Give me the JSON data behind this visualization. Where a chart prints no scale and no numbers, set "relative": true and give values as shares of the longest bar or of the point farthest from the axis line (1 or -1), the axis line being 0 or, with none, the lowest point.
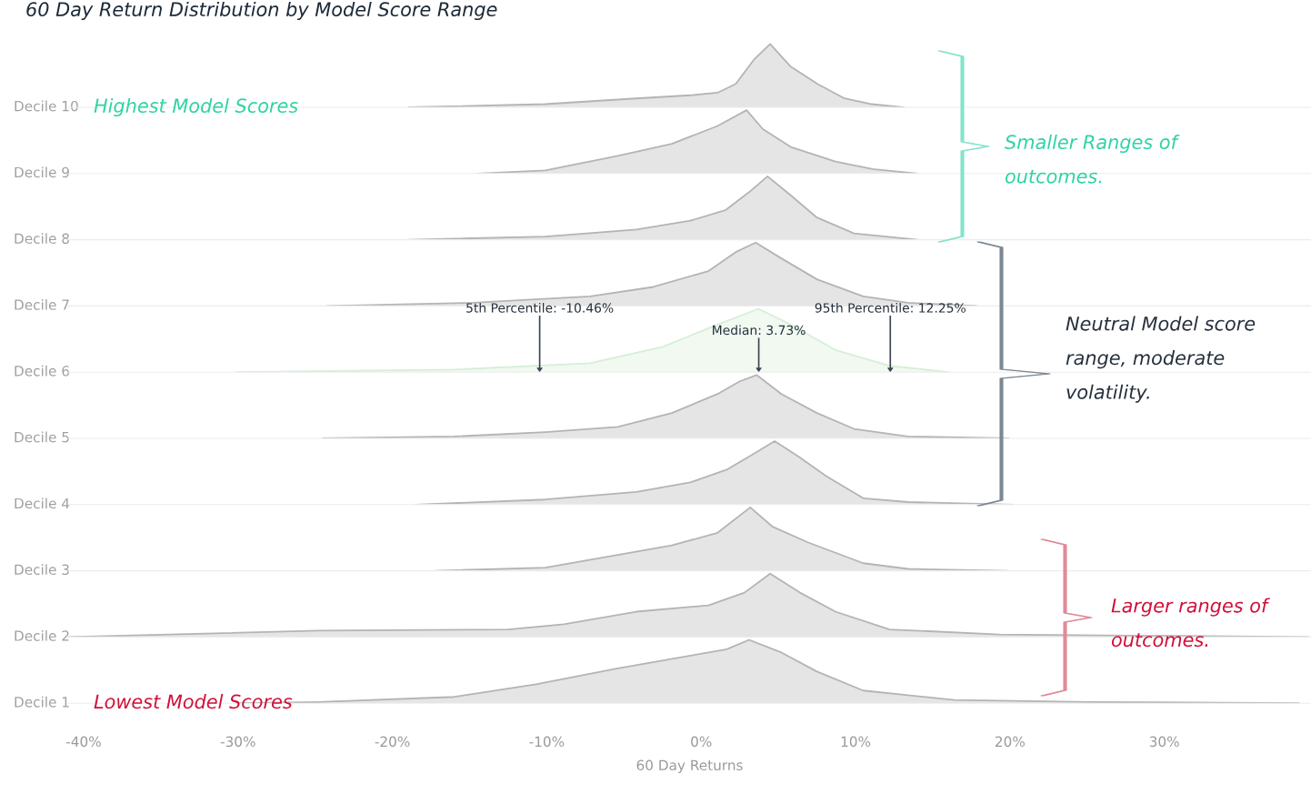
{
  "chart_data": [
    {
      "type": "area",
      "relative": true,
      "title": "60 Day Return Distribution by Model Score Range",
      "ylabel": "Decile 10",
      "annotations": [
        "Highest Model Scores"
      ],
      "xlim": [
        -41,
        39.5
      ],
      "tick_labels": false,
      "series": [
        {
          "color": "#b4b4b4",
          "x": [
            -18.94,
            -10.12,
            -4.24,
            -0.71,
            1.06,
            2.24,
            3.41,
            4.47,
            5.76,
            7.53,
            9.29,
            11.06,
            13.12
          ],
          "values": [
            0,
            0.05,
            0.14,
            0.19,
            0.23,
            0.37,
            0.75,
            1,
            0.65,
            0.37,
            0.14,
            0.05,
            0
          ]
        }
      ]
    },
    {
      "type": "area",
      "relative": true,
      "ylabel": "Decile 9",
      "annotations": [
        "Smaller Ranges of\noutcomes."
      ],
      "xlim": [
        -41,
        39.5
      ],
      "tick_labels": false,
      "series": [
        {
          "color": "#b4b4b4",
          "x": [
            -14.5,
            -10.1,
            -5.4,
            -1.9,
            1.06,
            2.94,
            4.0,
            5.8,
            8.7,
            11.1,
            14.0
          ],
          "values": [
            0,
            0.05,
            0.28,
            0.47,
            0.75,
            1,
            0.7,
            0.42,
            0.19,
            0.07,
            0
          ]
        }
      ]
    },
    {
      "type": "area",
      "relative": true,
      "ylabel": "Decile 8",
      "xlim": [
        -41,
        39.5
      ],
      "tick_labels": false,
      "series": [
        {
          "color": "#b4b4b4",
          "x": [
            -18.9,
            -10.1,
            -4.2,
            -0.7,
            1.6,
            3.1,
            4.3,
            5.8,
            7.5,
            9.9,
            14.0
          ],
          "values": [
            0,
            0.05,
            0.16,
            0.3,
            0.47,
            0.75,
            1,
            0.7,
            0.35,
            0.1,
            0
          ]
        }
      ]
    },
    {
      "type": "area",
      "relative": true,
      "ylabel": "Decile 7",
      "xlim": [
        -41,
        39.5
      ],
      "tick_labels": false,
      "series": [
        {
          "color": "#b4b4b4",
          "x": [
            -24.2,
            -14.8,
            -7.2,
            -3.1,
            0.47,
            2.24,
            3.53,
            5.2,
            7.5,
            10.5,
            13.4,
            17.8
          ],
          "values": [
            0,
            0.05,
            0.15,
            0.3,
            0.55,
            0.85,
            1,
            0.75,
            0.42,
            0.15,
            0.05,
            0
          ]
        }
      ]
    },
    {
      "type": "area",
      "relative": true,
      "ylabel": "Decile 6",
      "annotations": [
        "Neutral Model score\nrange, moderate\nvolatility."
      ],
      "xlim": [
        -41,
        39.5
      ],
      "tick_labels": false,
      "ref_lines": [
        {
          "axis": "x",
          "value": -10.46,
          "label": "5th Percentile: -10.46%"
        },
        {
          "axis": "x",
          "value": 3.73,
          "label": "Median: 3.73%"
        },
        {
          "axis": "x",
          "value": 12.25,
          "label": "95th Percentile: 12.25%"
        }
      ],
      "series": [
        {
          "color": "#d6efd6",
          "x": [
            -30.1,
            -16.0,
            -7.2,
            -2.5,
            1.06,
            3.71,
            5.8,
            8.7,
            12.2,
            16.06
          ],
          "values": [
            0,
            0.04,
            0.14,
            0.4,
            0.75,
            1,
            0.75,
            0.35,
            0.1,
            0
          ]
        }
      ]
    },
    {
      "type": "area",
      "relative": true,
      "ylabel": "Decile 5",
      "xlim": [
        -41,
        39.5
      ],
      "tick_labels": false,
      "series": [
        {
          "color": "#b4b4b4",
          "x": [
            -24.5,
            -16.0,
            -10.1,
            -5.4,
            -1.9,
            1.06,
            2.5,
            3.59,
            5.2,
            7.5,
            9.9,
            13.4,
            19.9
          ],
          "values": [
            0,
            0.03,
            0.1,
            0.18,
            0.4,
            0.7,
            0.9,
            1,
            0.7,
            0.4,
            0.15,
            0.03,
            0
          ]
        }
      ]
    },
    {
      "type": "area",
      "relative": true,
      "ylabel": "Decile 4",
      "xlim": [
        -41,
        39.5
      ],
      "tick_labels": false,
      "series": [
        {
          "color": "#b4b4b4",
          "x": [
            -18.5,
            -10.1,
            -4.2,
            -0.7,
            1.65,
            3.4,
            4.76,
            6.35,
            8.1,
            10.5,
            13.4,
            20.2
          ],
          "values": [
            0,
            0.08,
            0.2,
            0.35,
            0.55,
            0.8,
            1,
            0.75,
            0.45,
            0.1,
            0.04,
            0
          ]
        }
      ]
    },
    {
      "type": "area",
      "relative": true,
      "ylabel": "Decile 3",
      "xlim": [
        -41,
        39.5
      ],
      "tick_labels": false,
      "series": [
        {
          "color": "#b4b4b4",
          "x": [
            -17.2,
            -10.1,
            -5.4,
            -1.9,
            1.06,
            3.18,
            4.6,
            6.9,
            10.5,
            13.4,
            19.8
          ],
          "values": [
            0,
            0.05,
            0.25,
            0.4,
            0.6,
            1,
            0.7,
            0.45,
            0.12,
            0.03,
            0
          ]
        }
      ]
    },
    {
      "type": "area",
      "relative": true,
      "ylabel": "Decile 2",
      "annotations": [
        "Larger ranges of\noutcomes."
      ],
      "xlim": [
        -41,
        39.5
      ],
      "tick_labels": false,
      "series": [
        {
          "color": "#b4b4b4",
          "x": [
            -41.0,
            -24.8,
            -12.5,
            -8.9,
            -4.2,
            0.47,
            2.8,
            4.47,
            6.4,
            8.7,
            12.2,
            19.3,
            39.3
          ],
          "values": [
            0,
            0.1,
            0.12,
            0.2,
            0.4,
            0.5,
            0.7,
            1,
            0.7,
            0.4,
            0.12,
            0.04,
            0
          ]
        }
      ]
    },
    {
      "type": "area",
      "relative": true,
      "ylabel": "Decile 1",
      "xlabel": "60 Day Returns",
      "annotations": [
        "Lowest Model Scores"
      ],
      "xlim": [
        -41,
        39.5
      ],
      "tick_labels": "x",
      "xticks": [
        {
          "value": -40,
          "label": "-40%"
        },
        {
          "value": -30,
          "label": "-30%"
        },
        {
          "value": -20,
          "label": "-20%"
        },
        {
          "value": -10,
          "label": "-10%"
        },
        {
          "value": 0,
          "label": "0%"
        },
        {
          "value": 10,
          "label": "10%"
        },
        {
          "value": 20,
          "label": "20%"
        },
        {
          "value": 30,
          "label": "30%"
        }
      ],
      "series": [
        {
          "color": "#b4b4b4",
          "x": [
            -30.1,
            -24.8,
            -16.0,
            -10.7,
            -5.4,
            -0.7,
            1.65,
            3.1,
            5.2,
            7.5,
            10.5,
            16.4,
            25.2,
            38.7
          ],
          "values": [
            0,
            0.02,
            0.1,
            0.3,
            0.55,
            0.75,
            0.85,
            1,
            0.8,
            0.5,
            0.2,
            0.05,
            0.02,
            0
          ]
        }
      ]
    }
  ]
}
